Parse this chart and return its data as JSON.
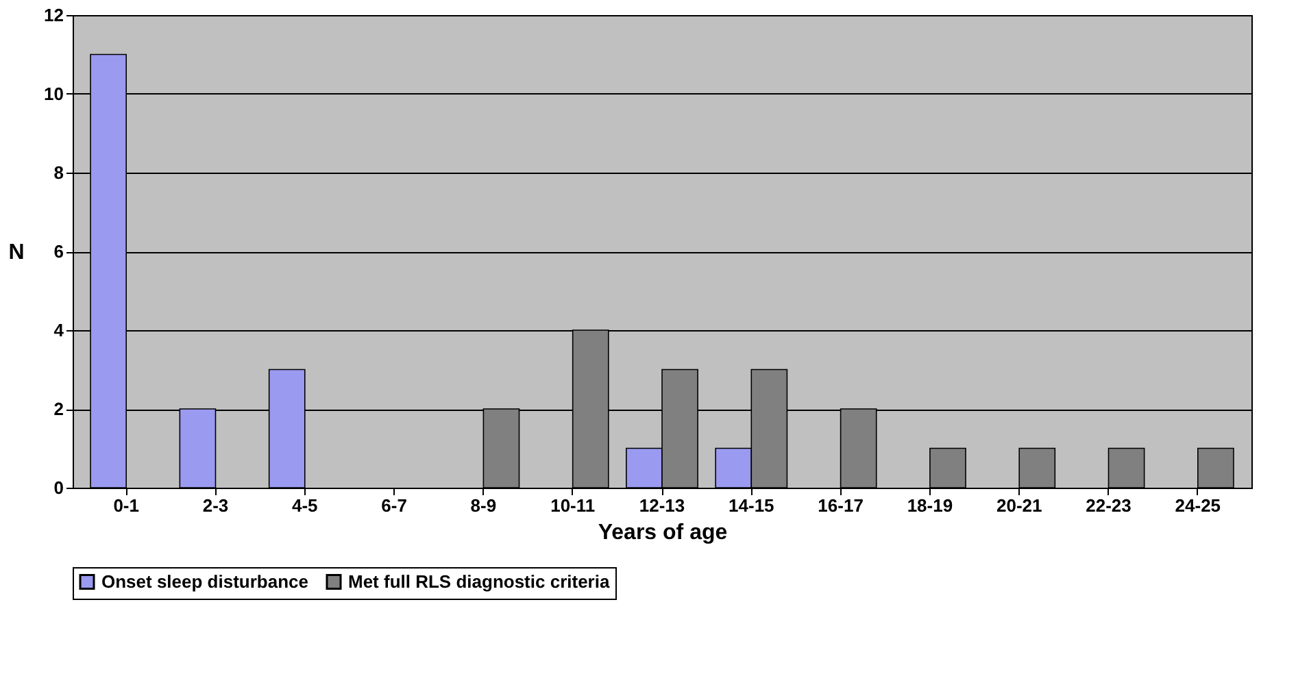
{
  "chart_data": {
    "type": "bar",
    "xlabel": "Years of age",
    "ylabel": "N",
    "categories": [
      "0-1",
      "2-3",
      "4-5",
      "6-7",
      "8-9",
      "10-11",
      "12-13",
      "14-15",
      "16-17",
      "18-19",
      "20-21",
      "22-23",
      "24-25"
    ],
    "series": [
      {
        "name": "Onset sleep disturbance",
        "color": "#9a9af0",
        "values": [
          11,
          2,
          3,
          null,
          null,
          null,
          1,
          1,
          null,
          null,
          null,
          null,
          null
        ]
      },
      {
        "name": "Met full RLS diagnostic criteria",
        "color": "#808080",
        "values": [
          null,
          null,
          null,
          null,
          2,
          4,
          3,
          3,
          2,
          1,
          1,
          1,
          1
        ]
      }
    ],
    "ylim": [
      0,
      12
    ],
    "yticks": [
      0,
      2,
      4,
      6,
      8,
      10,
      12
    ],
    "grid": "y",
    "legend": "bottom"
  }
}
